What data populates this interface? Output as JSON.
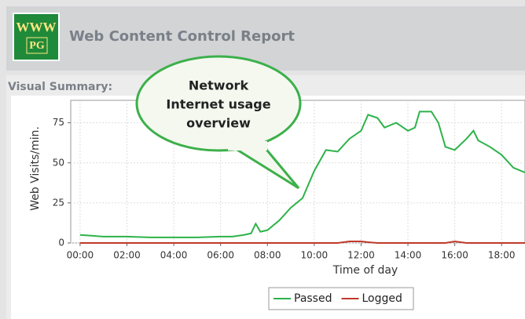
{
  "header": {
    "logo_top": "WWW",
    "logo_bottom": "PG",
    "title": "Web Content Control Report"
  },
  "section_label": "Visual Summary:",
  "callout": {
    "lines": [
      "Network",
      "Internet usage",
      "overview"
    ]
  },
  "chart_data": {
    "type": "line",
    "xlabel": "Time of day",
    "ylabel": "Web Visits/min.",
    "x": [
      0,
      0.5,
      1,
      2,
      3,
      4,
      5,
      6,
      6.5,
      7,
      7.3,
      7.5,
      7.7,
      8,
      8.5,
      9,
      9.5,
      10,
      10.5,
      11,
      11.5,
      12,
      12.3,
      12.7,
      13,
      13.5,
      14,
      14.3,
      14.5,
      15,
      15.3,
      15.6,
      16,
      16.5,
      16.8,
      17,
      17.5,
      18,
      18.5,
      19
    ],
    "series": [
      {
        "name": "Passed",
        "color": "#2db34a",
        "values": [
          5,
          4.5,
          4,
          4,
          3.5,
          3.5,
          3.5,
          4,
          4,
          5,
          6,
          12,
          7,
          8,
          14,
          22,
          28,
          45,
          58,
          57,
          65,
          70,
          80,
          78,
          72,
          75,
          70,
          72,
          82,
          82,
          75,
          60,
          58,
          65,
          70,
          64,
          60,
          55,
          47,
          44
        ]
      },
      {
        "name": "Logged",
        "color": "#c0392b",
        "values": [
          0,
          0,
          0,
          0,
          0,
          0,
          0,
          0,
          0,
          0,
          0,
          0,
          0,
          0,
          0,
          0,
          0,
          0,
          0,
          0,
          1,
          1,
          0.5,
          0,
          0,
          0,
          0,
          0,
          0,
          0,
          0,
          0,
          1,
          0,
          0,
          0,
          0,
          0,
          0,
          0
        ]
      }
    ],
    "xlim": [
      -0.4,
      19
    ],
    "xticks": [
      {
        "value": 0,
        "label": "00:00"
      },
      {
        "value": 2,
        "label": "02:00"
      },
      {
        "value": 4,
        "label": "04:00"
      },
      {
        "value": 6,
        "label": "06:00"
      },
      {
        "value": 8,
        "label": "08:00"
      },
      {
        "value": 10,
        "label": "10:00"
      },
      {
        "value": 12,
        "label": "12:00"
      },
      {
        "value": 14,
        "label": "14:00"
      },
      {
        "value": 16,
        "label": "16:00"
      },
      {
        "value": 18,
        "label": "18:00"
      }
    ],
    "ylim": [
      0,
      89
    ],
    "yticks": [
      0,
      25,
      50,
      75
    ],
    "grid": true,
    "legend": "bottom"
  }
}
